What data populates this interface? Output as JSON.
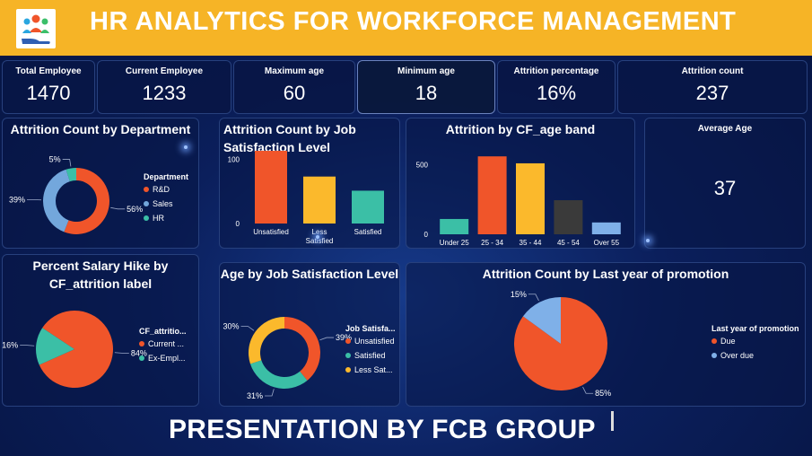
{
  "header": {
    "title": "HR  ANALYTICS FOR WORKFORCE MANAGEMENT",
    "logo_icon": "hr-people-hand-icon"
  },
  "kpis": [
    {
      "label": "Total Employee",
      "value": "1470"
    },
    {
      "label": "Current Employee",
      "value": "1233"
    },
    {
      "label": "Maximum age",
      "value": "60"
    },
    {
      "label": "Minimum age",
      "value": "18"
    },
    {
      "label": "Attrition percentage",
      "value": "16%"
    },
    {
      "label": "Attrition count",
      "value": "237"
    }
  ],
  "avg_age": {
    "title": "Average Age",
    "value": "37"
  },
  "footer": {
    "text": "PRESENTATION BY FCB GROUP"
  },
  "colors": {
    "orange": "#f0552a",
    "blue": "#73a7dc",
    "teal": "#3bbfa6",
    "yellow": "#fbb92c",
    "dark": "#3a3a3a",
    "lightblue": "#7fb0e8"
  },
  "chart_data": [
    {
      "id": "dept",
      "type": "pie",
      "title": "Attrition Count by Department",
      "donut": true,
      "legend_title": "Department",
      "legend_position": "right",
      "labels": [
        "R&D",
        "Sales",
        "HR"
      ],
      "values": [
        56,
        39,
        5
      ],
      "data_labels": [
        "56%",
        "39%",
        "5%"
      ]
    },
    {
      "id": "jobsat",
      "type": "bar",
      "title": "Attrition Count by Job Satisfaction Level",
      "categories": [
        "Unsatisfied",
        "Less Satisfied",
        "Satisfied"
      ],
      "values": [
        113,
        73,
        51
      ],
      "ylim": [
        0,
        120
      ],
      "yticks": [
        "0",
        "100"
      ]
    },
    {
      "id": "ageband",
      "type": "bar",
      "title": "Attrition by CF_age band",
      "categories": [
        "Under 25",
        "25 - 34",
        "35 - 44",
        "45 - 54",
        "Over 55"
      ],
      "values": [
        110,
        560,
        510,
        245,
        85
      ],
      "ylim": [
        0,
        600
      ],
      "yticks": [
        "0",
        "500"
      ]
    },
    {
      "id": "hike",
      "type": "pie",
      "title": "Percent Salary Hike by CF_attrition label",
      "donut": false,
      "legend_title": "CF_attritio...",
      "legend_position": "right",
      "labels": [
        "Current ...",
        "Ex-Empl..."
      ],
      "values": [
        84,
        16
      ],
      "data_labels": [
        "84%",
        "16%"
      ]
    },
    {
      "id": "agejob",
      "type": "pie",
      "title": "Age by Job Satisfaction Level",
      "donut": true,
      "legend_title": "Job Satisfa...",
      "legend_position": "right",
      "labels": [
        "Unsatisfied",
        "Satisfied",
        "Less Sat..."
      ],
      "values": [
        39,
        31,
        30
      ],
      "data_labels": [
        "39%",
        "31%",
        "30%"
      ]
    },
    {
      "id": "promo",
      "type": "pie",
      "title": "Attrition Count by Last year of promotion",
      "donut": false,
      "legend_title": "Last year of promotion",
      "legend_position": "right",
      "labels": [
        "Due",
        "Over due"
      ],
      "values": [
        85,
        15
      ],
      "data_labels": [
        "85%",
        "15%"
      ]
    }
  ]
}
